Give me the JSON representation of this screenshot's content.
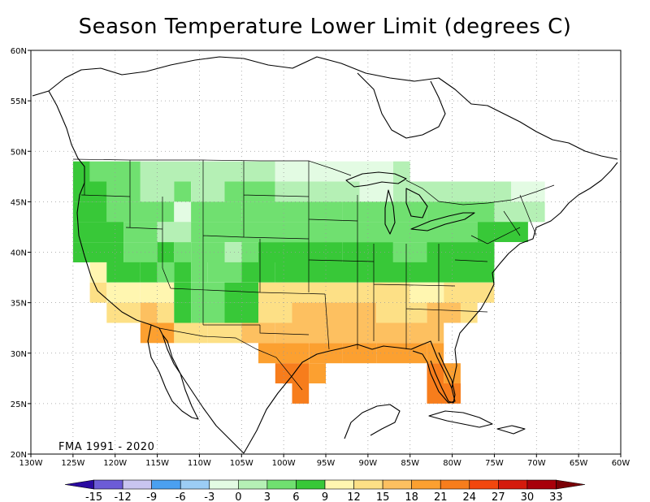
{
  "title": "Season Temperature Lower Limit (degrees C)",
  "period_note": "FMA 1991 - 2020",
  "lon_labels": [
    "130W",
    "125W",
    "120W",
    "115W",
    "110W",
    "105W",
    "100W",
    "95W",
    "90W",
    "85W",
    "80W",
    "75W",
    "70W",
    "65W",
    "60W"
  ],
  "lat_labels": [
    "20N",
    "25N",
    "30N",
    "35N",
    "40N",
    "45N",
    "50N",
    "55N",
    "60N"
  ],
  "colorbar": {
    "labels": [
      "-15",
      "-12",
      "-9",
      "-6",
      "-3",
      "0",
      "3",
      "6",
      "9",
      "12",
      "15",
      "18",
      "21",
      "24",
      "27",
      "30",
      "33"
    ],
    "colors": [
      "#2a0aa0",
      "#6c5cd6",
      "#c9c5f0",
      "#4ba0f0",
      "#9ccdf5",
      "#e3fbe3",
      "#b5f0b5",
      "#70e070",
      "#38c838",
      "#fff6b0",
      "#fde086",
      "#fdc060",
      "#fca030",
      "#f77d1c",
      "#f2470e",
      "#d41a0c",
      "#a8000a",
      "#7a0006"
    ]
  },
  "chart_data": {
    "type": "heatmap",
    "title": "Season Temperature Lower Limit (degrees C)",
    "lon_range": [
      -130,
      -60
    ],
    "lat_range": [
      20,
      60
    ],
    "cell_size_deg": 2,
    "units": "degrees C",
    "note": "FMA 1991 - 2020",
    "value_bins": [
      [
        -3,
        0
      ],
      [
        0,
        3
      ],
      [
        3,
        6
      ],
      [
        6,
        9
      ],
      [
        9,
        12
      ],
      [
        12,
        15
      ],
      [
        15,
        18
      ],
      [
        18,
        21
      ]
    ],
    "rows": [
      {
        "lat": 48,
        "cells": [
          [
            -125,
            -123,
            6
          ],
          [
            -123,
            -117,
            3
          ],
          [
            -117,
            -107,
            0
          ],
          [
            -107,
            -101,
            0
          ],
          [
            -101,
            -95,
            -3
          ],
          [
            -95,
            -87,
            -3
          ],
          [
            -87,
            -85,
            0
          ]
        ]
      },
      {
        "lat": 46,
        "cells": [
          [
            -125,
            -121,
            6
          ],
          [
            -121,
            -117,
            3
          ],
          [
            -117,
            -113,
            0
          ],
          [
            -113,
            -111,
            3
          ],
          [
            -111,
            -107,
            0
          ],
          [
            -107,
            -101,
            3
          ],
          [
            -101,
            -95,
            0
          ],
          [
            -95,
            -91,
            0
          ],
          [
            -91,
            -87,
            -3
          ],
          [
            -87,
            -83,
            0
          ],
          [
            -83,
            -73,
            0
          ],
          [
            -73,
            -69,
            -3
          ]
        ]
      },
      {
        "lat": 44,
        "cells": [
          [
            -125,
            -121,
            6
          ],
          [
            -121,
            -113,
            3
          ],
          [
            -113,
            -111,
            -3
          ],
          [
            -111,
            -105,
            3
          ],
          [
            -105,
            -93,
            3
          ],
          [
            -93,
            -83,
            3
          ],
          [
            -83,
            -75,
            3
          ],
          [
            -75,
            -69,
            0
          ]
        ]
      },
      {
        "lat": 42,
        "cells": [
          [
            -125,
            -119,
            6
          ],
          [
            -119,
            -115,
            3
          ],
          [
            -115,
            -111,
            0
          ],
          [
            -111,
            -107,
            3
          ],
          [
            -107,
            -103,
            3
          ],
          [
            -103,
            -91,
            3
          ],
          [
            -91,
            -83,
            3
          ],
          [
            -83,
            -77,
            3
          ],
          [
            -77,
            -71,
            6
          ]
        ]
      },
      {
        "lat": 40,
        "cells": [
          [
            -125,
            -119,
            6
          ],
          [
            -119,
            -115,
            3
          ],
          [
            -115,
            -113,
            6
          ],
          [
            -113,
            -111,
            3
          ],
          [
            -111,
            -107,
            3
          ],
          [
            -107,
            -105,
            0
          ],
          [
            -105,
            -103,
            3
          ],
          [
            -103,
            -93,
            6
          ],
          [
            -93,
            -87,
            6
          ],
          [
            -87,
            -83,
            3
          ],
          [
            -83,
            -75,
            6
          ]
        ]
      },
      {
        "lat": 38,
        "cells": [
          [
            -123,
            -121,
            9
          ],
          [
            -121,
            -117,
            6
          ],
          [
            -117,
            -115,
            6
          ],
          [
            -115,
            -113,
            3
          ],
          [
            -113,
            -111,
            6
          ],
          [
            -111,
            -109,
            3
          ],
          [
            -109,
            -105,
            3
          ],
          [
            -105,
            -101,
            6
          ],
          [
            -101,
            -87,
            6
          ],
          [
            -87,
            -79,
            6
          ],
          [
            -79,
            -75,
            6
          ]
        ]
      },
      {
        "lat": 36,
        "cells": [
          [
            -123,
            -121,
            12
          ],
          [
            -121,
            -117,
            9
          ],
          [
            -117,
            -113,
            9
          ],
          [
            -113,
            -111,
            6
          ],
          [
            -111,
            -107,
            3
          ],
          [
            -107,
            -103,
            6
          ],
          [
            -103,
            -95,
            12
          ],
          [
            -95,
            -91,
            12
          ],
          [
            -91,
            -85,
            12
          ],
          [
            -85,
            -81,
            9
          ],
          [
            -81,
            -75,
            12
          ]
        ]
      },
      {
        "lat": 34,
        "cells": [
          [
            -121,
            -117,
            12
          ],
          [
            -117,
            -115,
            15
          ],
          [
            -115,
            -113,
            12
          ],
          [
            -113,
            -111,
            6
          ],
          [
            -111,
            -107,
            3
          ],
          [
            -107,
            -103,
            6
          ],
          [
            -103,
            -99,
            12
          ],
          [
            -99,
            -95,
            15
          ],
          [
            -95,
            -89,
            15
          ],
          [
            -89,
            -83,
            12
          ],
          [
            -83,
            -79,
            15
          ],
          [
            -79,
            -77,
            12
          ]
        ]
      },
      {
        "lat": 32,
        "cells": [
          [
            -117,
            -113,
            18
          ],
          [
            -113,
            -109,
            12
          ],
          [
            -109,
            -105,
            12
          ],
          [
            -105,
            -101,
            15
          ],
          [
            -101,
            -95,
            15
          ],
          [
            -95,
            -91,
            15
          ],
          [
            -91,
            -85,
            15
          ],
          [
            -85,
            -81,
            15
          ]
        ]
      },
      {
        "lat": 30,
        "cells": [
          [
            -103,
            -97,
            18
          ],
          [
            -97,
            -93,
            18
          ],
          [
            -93,
            -89,
            18
          ],
          [
            -89,
            -83,
            18
          ],
          [
            -83,
            -81,
            18
          ]
        ]
      },
      {
        "lat": 28,
        "cells": [
          [
            -101,
            -97,
            21
          ],
          [
            -97,
            -95,
            18
          ],
          [
            -83,
            -81,
            21
          ],
          [
            -81,
            -79,
            18
          ]
        ]
      },
      {
        "lat": 26,
        "cells": [
          [
            -99,
            -97,
            21
          ],
          [
            -83,
            -79,
            21
          ]
        ]
      }
    ]
  }
}
